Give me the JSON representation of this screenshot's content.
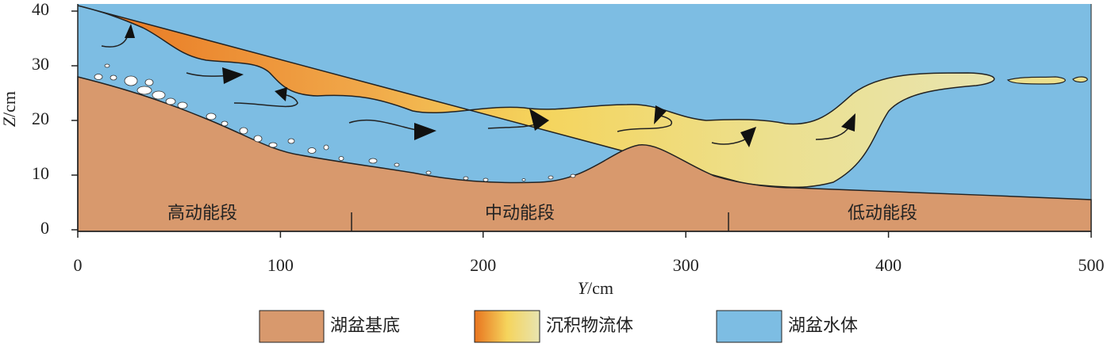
{
  "chart_data": {
    "type": "section",
    "xlim": [
      0,
      500
    ],
    "ylim": [
      0,
      40
    ],
    "xticks": [
      0,
      100,
      200,
      300,
      400,
      500
    ],
    "yticks": [
      0,
      10,
      20,
      30,
      40
    ],
    "x_label": {
      "var": "Y",
      "unit": "/cm"
    },
    "y_label": {
      "var": "Z",
      "unit": "/cm"
    },
    "zones": [
      "高动能段",
      "中动能段",
      "低动能段"
    ],
    "legend": [
      "湖盆基底",
      "沉积物流体",
      "湖盆水体"
    ]
  }
}
